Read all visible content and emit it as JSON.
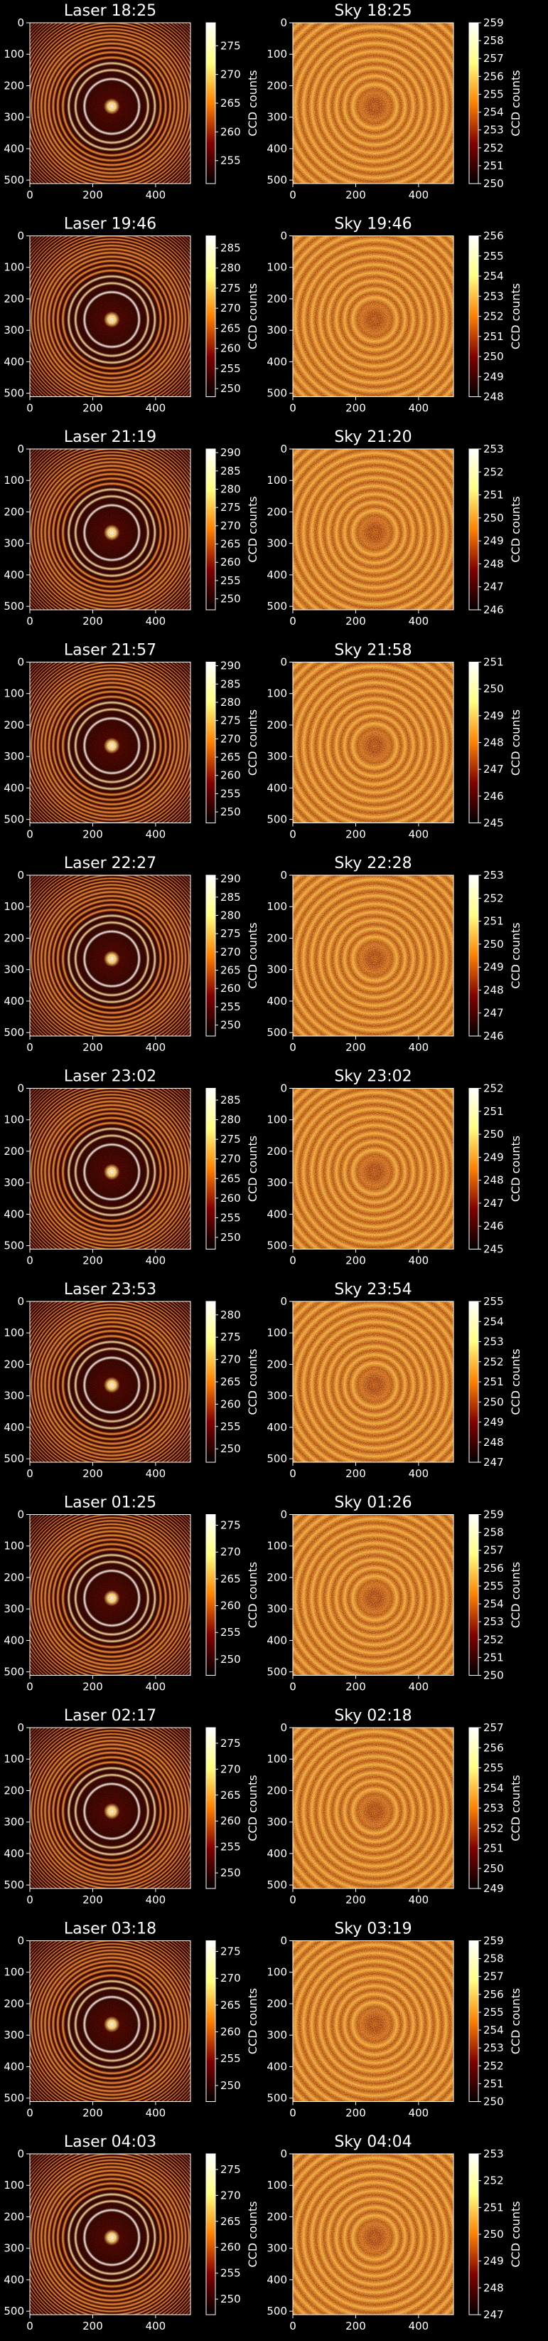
{
  "colors": {
    "background": "#000000",
    "text": "#ffffff",
    "colormap": "afmhot"
  },
  "colorbar_label": "CCD counts",
  "chart_data": [
    {
      "type": "heatmap",
      "title": "Laser 18:25",
      "kind": "laser",
      "clim": [
        251,
        279
      ],
      "cbar_ticks": [
        255,
        260,
        265,
        270,
        275
      ],
      "xticks": [
        0,
        200,
        400
      ],
      "yticks": [
        0,
        100,
        200,
        300,
        400,
        500
      ],
      "colorbar_label": "CCD counts",
      "xlim": [
        0,
        511
      ],
      "ylim": [
        511,
        0
      ]
    },
    {
      "type": "heatmap",
      "title": "Sky 18:25",
      "kind": "sky",
      "clim": [
        250,
        259
      ],
      "cbar_ticks": [
        250,
        251,
        252,
        253,
        254,
        255,
        256,
        257,
        258,
        259
      ],
      "xticks": [
        0,
        200,
        400
      ],
      "yticks": [
        0,
        100,
        200,
        300,
        400,
        500
      ],
      "colorbar_label": "CCD counts",
      "xlim": [
        0,
        511
      ],
      "ylim": [
        511,
        0
      ]
    },
    {
      "type": "heatmap",
      "title": "Laser 19:46",
      "kind": "laser",
      "clim": [
        248,
        288
      ],
      "cbar_ticks": [
        250,
        255,
        260,
        265,
        270,
        275,
        280,
        285
      ],
      "xticks": [
        0,
        200,
        400
      ],
      "yticks": [
        0,
        100,
        200,
        300,
        400,
        500
      ],
      "colorbar_label": "CCD counts",
      "xlim": [
        0,
        511
      ],
      "ylim": [
        511,
        0
      ]
    },
    {
      "type": "heatmap",
      "title": "Sky 19:46",
      "kind": "sky",
      "clim": [
        248,
        256
      ],
      "cbar_ticks": [
        248,
        249,
        250,
        251,
        252,
        253,
        254,
        255,
        256
      ],
      "xticks": [
        0,
        200,
        400
      ],
      "yticks": [
        0,
        100,
        200,
        300,
        400,
        500
      ],
      "colorbar_label": "CCD counts",
      "xlim": [
        0,
        511
      ],
      "ylim": [
        511,
        0
      ]
    },
    {
      "type": "heatmap",
      "title": "Laser 21:19",
      "kind": "laser",
      "clim": [
        247,
        291
      ],
      "cbar_ticks": [
        250,
        255,
        260,
        265,
        270,
        275,
        280,
        285,
        290
      ],
      "xticks": [
        0,
        200,
        400
      ],
      "yticks": [
        0,
        100,
        200,
        300,
        400,
        500
      ],
      "colorbar_label": "CCD counts",
      "xlim": [
        0,
        511
      ],
      "ylim": [
        511,
        0
      ]
    },
    {
      "type": "heatmap",
      "title": "Sky 21:20",
      "kind": "sky",
      "clim": [
        246,
        253
      ],
      "cbar_ticks": [
        246,
        247,
        248,
        249,
        250,
        251,
        252,
        253
      ],
      "xticks": [
        0,
        200,
        400
      ],
      "yticks": [
        0,
        100,
        200,
        300,
        400,
        500
      ],
      "colorbar_label": "CCD counts",
      "xlim": [
        0,
        511
      ],
      "ylim": [
        511,
        0
      ]
    },
    {
      "type": "heatmap",
      "title": "Laser 21:57",
      "kind": "laser",
      "clim": [
        247,
        291
      ],
      "cbar_ticks": [
        250,
        255,
        260,
        265,
        270,
        275,
        280,
        285,
        290
      ],
      "xticks": [
        0,
        200,
        400
      ],
      "yticks": [
        0,
        100,
        200,
        300,
        400,
        500
      ],
      "colorbar_label": "CCD counts",
      "xlim": [
        0,
        511
      ],
      "ylim": [
        511,
        0
      ]
    },
    {
      "type": "heatmap",
      "title": "Sky 21:58",
      "kind": "sky",
      "clim": [
        245,
        251
      ],
      "cbar_ticks": [
        245,
        246,
        247,
        248,
        249,
        250,
        251
      ],
      "xticks": [
        0,
        200,
        400
      ],
      "yticks": [
        0,
        100,
        200,
        300,
        400,
        500
      ],
      "colorbar_label": "CCD counts",
      "xlim": [
        0,
        511
      ],
      "ylim": [
        511,
        0
      ]
    },
    {
      "type": "heatmap",
      "title": "Laser 22:27",
      "kind": "laser",
      "clim": [
        247,
        291
      ],
      "cbar_ticks": [
        250,
        255,
        260,
        265,
        270,
        275,
        280,
        285,
        290
      ],
      "xticks": [
        0,
        200,
        400
      ],
      "yticks": [
        0,
        100,
        200,
        300,
        400,
        500
      ],
      "colorbar_label": "CCD counts",
      "xlim": [
        0,
        511
      ],
      "ylim": [
        511,
        0
      ]
    },
    {
      "type": "heatmap",
      "title": "Sky 22:28",
      "kind": "sky",
      "clim": [
        246,
        253
      ],
      "cbar_ticks": [
        246,
        247,
        248,
        249,
        250,
        251,
        252,
        253
      ],
      "xticks": [
        0,
        200,
        400
      ],
      "yticks": [
        0,
        100,
        200,
        300,
        400,
        500
      ],
      "colorbar_label": "CCD counts",
      "xlim": [
        0,
        511
      ],
      "ylim": [
        511,
        0
      ]
    },
    {
      "type": "heatmap",
      "title": "Laser 23:02",
      "kind": "laser",
      "clim": [
        247,
        288
      ],
      "cbar_ticks": [
        250,
        255,
        260,
        265,
        270,
        275,
        280,
        285
      ],
      "xticks": [
        0,
        200,
        400
      ],
      "yticks": [
        0,
        100,
        200,
        300,
        400,
        500
      ],
      "colorbar_label": "CCD counts",
      "xlim": [
        0,
        511
      ],
      "ylim": [
        511,
        0
      ]
    },
    {
      "type": "heatmap",
      "title": "Sky 23:02",
      "kind": "sky",
      "clim": [
        245,
        252
      ],
      "cbar_ticks": [
        245,
        246,
        247,
        248,
        249,
        250,
        251,
        252
      ],
      "xticks": [
        0,
        200,
        400
      ],
      "yticks": [
        0,
        100,
        200,
        300,
        400,
        500
      ],
      "colorbar_label": "CCD counts",
      "xlim": [
        0,
        511
      ],
      "ylim": [
        511,
        0
      ]
    },
    {
      "type": "heatmap",
      "title": "Laser 23:53",
      "kind": "laser",
      "clim": [
        247,
        283
      ],
      "cbar_ticks": [
        250,
        255,
        260,
        265,
        270,
        275,
        280
      ],
      "xticks": [
        0,
        200,
        400
      ],
      "yticks": [
        0,
        100,
        200,
        300,
        400,
        500
      ],
      "colorbar_label": "CCD counts",
      "xlim": [
        0,
        511
      ],
      "ylim": [
        511,
        0
      ]
    },
    {
      "type": "heatmap",
      "title": "Sky 23:54",
      "kind": "sky",
      "clim": [
        247,
        255
      ],
      "cbar_ticks": [
        247,
        248,
        249,
        250,
        251,
        252,
        253,
        254,
        255
      ],
      "xticks": [
        0,
        200,
        400
      ],
      "yticks": [
        0,
        100,
        200,
        300,
        400,
        500
      ],
      "colorbar_label": "CCD counts",
      "xlim": [
        0,
        511
      ],
      "ylim": [
        511,
        0
      ]
    },
    {
      "type": "heatmap",
      "title": "Laser 01:25",
      "kind": "laser",
      "clim": [
        247,
        277
      ],
      "cbar_ticks": [
        250,
        255,
        260,
        265,
        270,
        275
      ],
      "xticks": [
        0,
        200,
        400
      ],
      "yticks": [
        0,
        100,
        200,
        300,
        400,
        500
      ],
      "colorbar_label": "CCD counts",
      "xlim": [
        0,
        511
      ],
      "ylim": [
        511,
        0
      ]
    },
    {
      "type": "heatmap",
      "title": "Sky 01:26",
      "kind": "sky",
      "clim": [
        250,
        259
      ],
      "cbar_ticks": [
        250,
        251,
        252,
        253,
        254,
        255,
        256,
        257,
        258,
        259
      ],
      "xticks": [
        0,
        200,
        400
      ],
      "yticks": [
        0,
        100,
        200,
        300,
        400,
        500
      ],
      "colorbar_label": "CCD counts",
      "xlim": [
        0,
        511
      ],
      "ylim": [
        511,
        0
      ]
    },
    {
      "type": "heatmap",
      "title": "Laser 02:17",
      "kind": "laser",
      "clim": [
        247,
        278
      ],
      "cbar_ticks": [
        250,
        255,
        260,
        265,
        270,
        275
      ],
      "xticks": [
        0,
        200,
        400
      ],
      "yticks": [
        0,
        100,
        200,
        300,
        400,
        500
      ],
      "colorbar_label": "CCD counts",
      "xlim": [
        0,
        511
      ],
      "ylim": [
        511,
        0
      ]
    },
    {
      "type": "heatmap",
      "title": "Sky 02:18",
      "kind": "sky",
      "clim": [
        249,
        257
      ],
      "cbar_ticks": [
        249,
        250,
        251,
        252,
        253,
        254,
        255,
        256,
        257
      ],
      "xticks": [
        0,
        200,
        400
      ],
      "yticks": [
        0,
        100,
        200,
        300,
        400,
        500
      ],
      "colorbar_label": "CCD counts",
      "xlim": [
        0,
        511
      ],
      "ylim": [
        511,
        0
      ]
    },
    {
      "type": "heatmap",
      "title": "Laser 03:18",
      "kind": "laser",
      "clim": [
        247,
        277
      ],
      "cbar_ticks": [
        250,
        255,
        260,
        265,
        270,
        275
      ],
      "xticks": [
        0,
        200,
        400
      ],
      "yticks": [
        0,
        100,
        200,
        300,
        400,
        500
      ],
      "colorbar_label": "CCD counts",
      "xlim": [
        0,
        511
      ],
      "ylim": [
        511,
        0
      ]
    },
    {
      "type": "heatmap",
      "title": "Sky 03:19",
      "kind": "sky",
      "clim": [
        250,
        259
      ],
      "cbar_ticks": [
        250,
        251,
        252,
        253,
        254,
        255,
        256,
        257,
        258,
        259
      ],
      "xticks": [
        0,
        200,
        400
      ],
      "yticks": [
        0,
        100,
        200,
        300,
        400,
        500
      ],
      "colorbar_label": "CCD counts",
      "xlim": [
        0,
        511
      ],
      "ylim": [
        511,
        0
      ]
    },
    {
      "type": "heatmap",
      "title": "Laser 04:03",
      "kind": "laser",
      "clim": [
        247,
        278
      ],
      "cbar_ticks": [
        250,
        255,
        260,
        265,
        270,
        275
      ],
      "xticks": [
        0,
        200,
        400
      ],
      "yticks": [
        0,
        100,
        200,
        300,
        400,
        500
      ],
      "colorbar_label": "CCD counts",
      "xlim": [
        0,
        511
      ],
      "ylim": [
        511,
        0
      ]
    },
    {
      "type": "heatmap",
      "title": "Sky 04:04",
      "kind": "sky",
      "clim": [
        247,
        253
      ],
      "cbar_ticks": [
        247,
        248,
        249,
        250,
        251,
        252,
        253
      ],
      "xticks": [
        0,
        200,
        400
      ],
      "yticks": [
        0,
        100,
        200,
        300,
        400,
        500
      ],
      "colorbar_label": "CCD counts",
      "xlim": [
        0,
        511
      ],
      "ylim": [
        511,
        0
      ]
    }
  ]
}
